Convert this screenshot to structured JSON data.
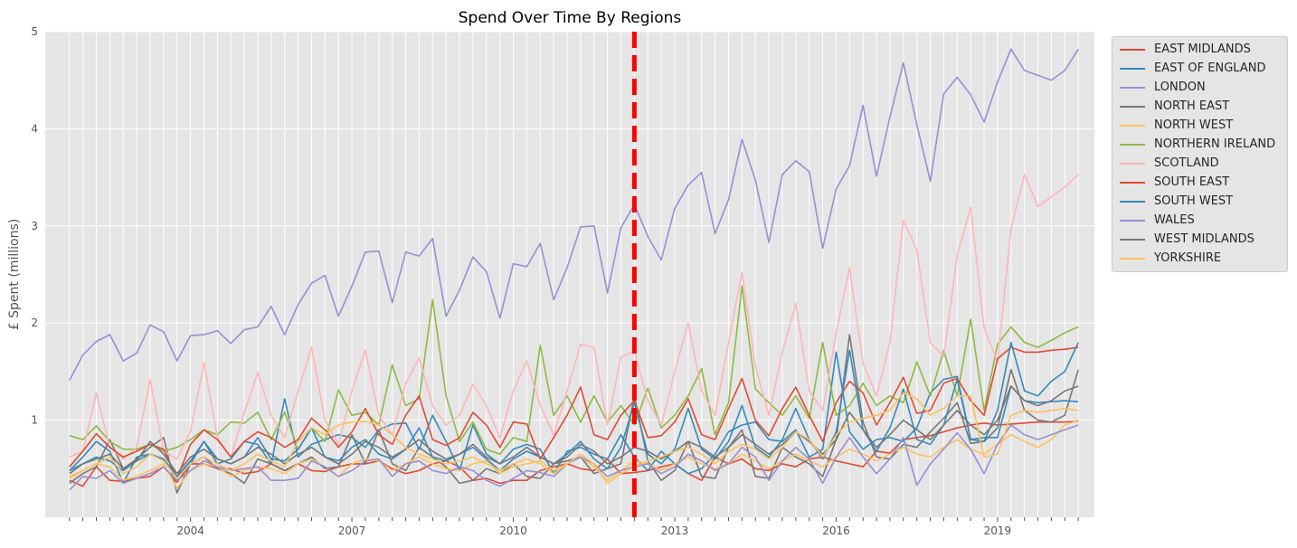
{
  "chart_data": {
    "type": "line",
    "title": "Spend Over Time By Regions",
    "xlabel": "",
    "ylabel": "£ Spent (millions)",
    "ylim": [
      0,
      5
    ],
    "xlim": [
      2001.3,
      2020.8
    ],
    "yticks": [
      1,
      2,
      3,
      4,
      5
    ],
    "xticks": [
      {
        "value": 2004,
        "label": "2004"
      },
      {
        "value": 2007,
        "label": "2007"
      },
      {
        "value": 2010,
        "label": "2010"
      },
      {
        "value": 2013,
        "label": "2013"
      },
      {
        "value": 2016,
        "label": "2016"
      },
      {
        "value": 2019,
        "label": "2019"
      }
    ],
    "grid": true,
    "legend_position": "outside-top-right",
    "x_start": 2001.75,
    "x_step": 0.25,
    "vline": {
      "x": 2012.25,
      "color": "#ff0000",
      "style": "dashed"
    },
    "series": [
      {
        "name": "EAST MIDLANDS",
        "color": "#E24A33",
        "values": [
          0.38,
          0.32,
          0.52,
          0.38,
          0.37,
          0.4,
          0.42,
          0.52,
          0.36,
          0.55,
          0.55,
          0.5,
          0.5,
          0.45,
          0.47,
          0.55,
          0.48,
          0.55,
          0.48,
          0.47,
          0.52,
          0.55,
          0.55,
          0.58,
          0.5,
          0.45,
          0.48,
          0.55,
          0.58,
          0.52,
          0.38,
          0.4,
          0.35,
          0.38,
          0.38,
          0.48,
          0.52,
          0.55,
          0.5,
          0.48,
          0.6,
          0.45,
          0.46,
          0.48,
          0.52,
          0.55,
          0.45,
          0.38,
          0.62,
          0.55,
          0.6,
          0.5,
          0.48,
          0.55,
          0.52,
          0.6,
          0.62,
          0.58,
          0.55,
          0.52,
          0.68,
          0.66,
          0.8,
          0.82,
          0.84,
          0.88,
          0.92,
          0.95,
          0.97,
          0.95,
          0.96,
          0.97,
          0.98,
          0.98,
          0.98,
          0.99
        ]
      },
      {
        "name": "EAST OF ENGLAND",
        "color": "#348ABD",
        "values": [
          0.48,
          0.62,
          0.78,
          0.68,
          0.35,
          0.62,
          0.65,
          0.6,
          0.42,
          0.55,
          0.78,
          0.55,
          0.6,
          0.78,
          0.75,
          0.55,
          1.22,
          0.62,
          0.75,
          0.8,
          0.85,
          0.82,
          0.72,
          0.9,
          0.96,
          0.97,
          0.7,
          1.05,
          0.78,
          0.48,
          0.95,
          0.65,
          0.55,
          0.7,
          0.75,
          0.7,
          0.45,
          0.68,
          0.72,
          0.65,
          0.6,
          0.85,
          0.62,
          0.48,
          0.68,
          0.55,
          0.45,
          0.5,
          0.65,
          0.88,
          0.95,
          0.98,
          0.8,
          0.78,
          0.9,
          0.62,
          0.7,
          1.7,
          0.88,
          0.7,
          0.8,
          0.82,
          0.78,
          0.92,
          1.28,
          1.42,
          1.45,
          0.8,
          0.82,
          0.82,
          1.35,
          1.2,
          1.18,
          1.19,
          1.2,
          1.19
        ]
      },
      {
        "name": "LONDON",
        "color": "#988ED5",
        "values": [
          1.41,
          1.67,
          1.81,
          1.88,
          1.61,
          1.69,
          1.98,
          1.91,
          1.61,
          1.87,
          1.88,
          1.92,
          1.79,
          1.93,
          1.96,
          2.17,
          1.88,
          2.19,
          2.41,
          2.49,
          2.07,
          2.38,
          2.73,
          2.74,
          2.21,
          2.73,
          2.69,
          2.87,
          2.07,
          2.34,
          2.68,
          2.53,
          2.05,
          2.61,
          2.58,
          2.82,
          2.24,
          2.57,
          2.99,
          3.0,
          2.31,
          2.98,
          3.22,
          2.89,
          2.65,
          3.18,
          3.42,
          3.55,
          2.92,
          3.27,
          3.89,
          3.47,
          2.83,
          3.53,
          3.67,
          3.56,
          2.77,
          3.38,
          3.62,
          4.24,
          3.51,
          4.12,
          4.68,
          4.04,
          3.46,
          4.36,
          4.53,
          4.35,
          4.07,
          4.48,
          4.82,
          4.6,
          4.55,
          4.5,
          4.6,
          4.82
        ]
      },
      {
        "name": "NORTH EAST",
        "color": "#777777",
        "values": [
          0.35,
          0.45,
          0.52,
          0.8,
          0.5,
          0.6,
          0.72,
          0.82,
          0.25,
          0.55,
          0.62,
          0.5,
          0.45,
          0.35,
          0.6,
          0.55,
          0.48,
          0.55,
          0.62,
          0.5,
          0.52,
          0.85,
          0.55,
          0.9,
          0.55,
          0.48,
          0.72,
          0.62,
          0.52,
          0.35,
          0.38,
          0.5,
          0.45,
          0.55,
          0.42,
          0.4,
          0.55,
          0.58,
          0.62,
          0.45,
          0.5,
          0.55,
          1.25,
          0.58,
          0.38,
          0.48,
          0.78,
          0.42,
          0.4,
          0.72,
          0.9,
          0.42,
          0.4,
          0.72,
          0.62,
          0.55,
          0.42,
          0.8,
          1.88,
          0.98,
          0.62,
          0.6,
          0.75,
          0.72,
          0.88,
          1.02,
          1.18,
          0.76,
          0.78,
          0.92,
          1.52,
          1.1,
          1.0,
          0.98,
          1.05,
          1.52
        ]
      },
      {
        "name": "NORTH WEST",
        "color": "#FBC15E",
        "values": [
          0.42,
          0.48,
          0.55,
          0.52,
          0.38,
          0.42,
          0.48,
          0.55,
          0.3,
          0.48,
          0.55,
          0.52,
          0.42,
          0.48,
          0.52,
          0.5,
          0.45,
          0.55,
          0.6,
          0.52,
          0.42,
          0.55,
          0.6,
          0.58,
          0.48,
          0.55,
          0.62,
          0.55,
          0.5,
          0.48,
          0.55,
          0.58,
          0.45,
          0.52,
          0.55,
          0.58,
          0.48,
          0.55,
          0.62,
          0.52,
          0.38,
          0.48,
          0.58,
          0.55,
          0.48,
          0.55,
          0.62,
          0.55,
          0.5,
          0.55,
          0.65,
          0.58,
          0.5,
          0.58,
          0.65,
          0.58,
          0.52,
          0.62,
          0.7,
          0.65,
          0.58,
          0.65,
          0.72,
          0.65,
          0.62,
          0.72,
          0.8,
          0.7,
          0.65,
          0.75,
          0.85,
          0.78,
          0.72,
          0.8,
          0.95,
          1.0
        ]
      },
      {
        "name": "NORTHERN IRELAND",
        "color": "#8EBA42",
        "values": [
          0.84,
          0.8,
          0.94,
          0.78,
          0.7,
          0.7,
          0.75,
          0.68,
          0.72,
          0.8,
          0.9,
          0.85,
          0.98,
          0.97,
          1.08,
          0.8,
          1.08,
          0.7,
          0.92,
          0.78,
          1.31,
          1.05,
          1.08,
          0.95,
          1.57,
          1.15,
          1.22,
          2.24,
          1.25,
          0.78,
          0.98,
          0.7,
          0.65,
          0.82,
          0.78,
          1.77,
          1.05,
          1.25,
          0.98,
          1.25,
          0.98,
          1.15,
          0.95,
          1.33,
          0.92,
          1.05,
          1.25,
          1.53,
          0.85,
          1.18,
          2.38,
          1.32,
          1.18,
          1.05,
          1.25,
          1.02,
          1.8,
          1.05,
          1.15,
          1.38,
          1.15,
          1.25,
          1.18,
          1.6,
          1.25,
          1.72,
          1.25,
          2.04,
          1.1,
          1.78,
          1.96,
          1.8,
          1.75,
          1.82,
          1.9,
          1.96
        ]
      },
      {
        "name": "SCOTLAND",
        "color": "#FFB5B8",
        "values": [
          0.62,
          0.68,
          1.28,
          0.72,
          0.6,
          0.72,
          1.42,
          0.68,
          0.6,
          0.88,
          1.59,
          0.82,
          0.62,
          1.08,
          1.49,
          1.05,
          0.82,
          1.3,
          1.75,
          1.0,
          0.75,
          1.3,
          1.72,
          1.05,
          0.85,
          1.38,
          1.64,
          1.15,
          0.95,
          1.05,
          1.37,
          1.15,
          0.82,
          1.3,
          1.61,
          1.15,
          0.85,
          1.3,
          1.78,
          1.75,
          0.95,
          1.65,
          1.71,
          1.2,
          0.95,
          1.5,
          2.0,
          1.3,
          1.05,
          1.8,
          2.52,
          1.55,
          1.05,
          1.7,
          2.2,
          1.3,
          1.1,
          1.9,
          2.57,
          1.58,
          1.25,
          1.8,
          3.06,
          2.75,
          1.8,
          1.65,
          2.7,
          3.19,
          1.95,
          1.6,
          2.97,
          3.53,
          3.2,
          3.3,
          3.4,
          3.53
        ]
      },
      {
        "name": "SOUTH EAST",
        "color": "#E24A33",
        "values": [
          0.52,
          0.68,
          0.86,
          0.72,
          0.62,
          0.68,
          0.75,
          0.7,
          0.4,
          0.75,
          0.9,
          0.8,
          0.62,
          0.78,
          0.88,
          0.82,
          0.72,
          0.8,
          1.02,
          0.9,
          0.72,
          0.88,
          1.12,
          0.85,
          0.75,
          1.05,
          1.25,
          0.8,
          0.74,
          0.82,
          1.08,
          0.95,
          0.72,
          0.98,
          0.96,
          0.6,
          0.82,
          1.05,
          1.34,
          0.85,
          0.8,
          1.05,
          1.2,
          0.82,
          0.84,
          0.98,
          1.22,
          0.85,
          0.8,
          1.12,
          1.43,
          1.0,
          0.84,
          1.12,
          1.34,
          1.05,
          0.78,
          1.18,
          1.4,
          1.28,
          0.95,
          1.18,
          1.44,
          1.07,
          1.1,
          1.38,
          1.43,
          1.2,
          1.05,
          1.63,
          1.75,
          1.7,
          1.7,
          1.72,
          1.73,
          1.75
        ]
      },
      {
        "name": "SOUTH WEST",
        "color": "#348ABD",
        "values": [
          0.48,
          0.55,
          0.62,
          0.58,
          0.48,
          0.58,
          0.65,
          0.6,
          0.42,
          0.58,
          0.78,
          0.6,
          0.55,
          0.62,
          0.82,
          0.6,
          0.58,
          0.7,
          0.92,
          0.62,
          0.58,
          0.72,
          0.8,
          0.65,
          0.6,
          0.7,
          0.92,
          0.62,
          0.58,
          0.65,
          0.72,
          0.6,
          0.48,
          0.6,
          0.68,
          0.62,
          0.55,
          0.65,
          0.78,
          0.6,
          0.5,
          0.72,
          1.18,
          0.65,
          0.55,
          0.7,
          1.12,
          0.7,
          0.6,
          0.78,
          1.15,
          0.72,
          0.62,
          0.8,
          1.12,
          0.8,
          0.6,
          0.88,
          1.72,
          0.9,
          0.68,
          0.92,
          1.32,
          0.8,
          0.75,
          0.95,
          1.42,
          0.8,
          0.78,
          1.1,
          1.8,
          1.3,
          1.25,
          1.4,
          1.5,
          1.8
        ]
      },
      {
        "name": "WALES",
        "color": "#988ED5",
        "values": [
          0.28,
          0.42,
          0.4,
          0.48,
          0.35,
          0.4,
          0.45,
          0.52,
          0.38,
          0.48,
          0.58,
          0.52,
          0.48,
          0.5,
          0.52,
          0.38,
          0.38,
          0.4,
          0.58,
          0.52,
          0.42,
          0.48,
          0.58,
          0.6,
          0.42,
          0.55,
          0.58,
          0.48,
          0.45,
          0.52,
          0.48,
          0.38,
          0.32,
          0.4,
          0.48,
          0.46,
          0.42,
          0.55,
          0.62,
          0.55,
          0.42,
          0.48,
          0.52,
          0.55,
          0.45,
          0.52,
          0.65,
          0.58,
          0.48,
          0.55,
          0.72,
          0.62,
          0.38,
          0.58,
          0.72,
          0.6,
          0.35,
          0.62,
          0.82,
          0.62,
          0.45,
          0.6,
          0.82,
          0.33,
          0.55,
          0.7,
          0.87,
          0.7,
          0.45,
          0.75,
          0.95,
          0.85,
          0.8,
          0.85,
          0.9,
          0.95
        ]
      },
      {
        "name": "WEST MIDLANDS",
        "color": "#777777",
        "values": [
          0.45,
          0.55,
          0.6,
          0.65,
          0.5,
          0.58,
          0.78,
          0.65,
          0.45,
          0.62,
          0.7,
          0.6,
          0.55,
          0.62,
          0.72,
          0.65,
          0.55,
          0.65,
          0.72,
          0.62,
          0.55,
          0.65,
          0.78,
          0.72,
          0.62,
          0.7,
          0.8,
          0.68,
          0.6,
          0.65,
          0.75,
          0.62,
          0.55,
          0.62,
          0.72,
          0.62,
          0.55,
          0.62,
          0.75,
          0.68,
          0.55,
          0.62,
          0.72,
          0.68,
          0.6,
          0.68,
          0.78,
          0.72,
          0.62,
          0.72,
          0.85,
          0.75,
          0.65,
          0.75,
          0.88,
          0.78,
          0.65,
          0.8,
          1.08,
          0.9,
          0.72,
          0.85,
          1.0,
          0.9,
          0.8,
          0.95,
          1.1,
          0.95,
          0.85,
          1.0,
          1.35,
          1.2,
          1.15,
          1.2,
          1.3,
          1.35
        ]
      },
      {
        "name": "YORKSHIRE",
        "color": "#FBC15E",
        "values": [
          0.4,
          0.48,
          0.55,
          0.62,
          0.45,
          0.52,
          0.65,
          0.58,
          0.4,
          0.55,
          0.62,
          0.55,
          0.48,
          0.55,
          0.65,
          0.58,
          0.52,
          0.78,
          0.92,
          0.85,
          0.95,
          0.98,
          0.99,
          0.95,
          0.85,
          0.72,
          0.65,
          0.6,
          0.55,
          0.58,
          0.62,
          0.55,
          0.48,
          0.55,
          0.6,
          0.55,
          0.45,
          0.55,
          0.65,
          0.55,
          0.35,
          0.45,
          0.52,
          0.58,
          0.62,
          0.68,
          0.72,
          0.65,
          0.55,
          0.68,
          0.75,
          0.7,
          0.6,
          0.72,
          0.88,
          0.8,
          0.62,
          0.85,
          0.98,
          1.02,
          1.05,
          1.1,
          1.28,
          1.22,
          1.05,
          1.12,
          1.25,
          1.25,
          0.62,
          0.65,
          1.05,
          1.1,
          1.08,
          1.1,
          1.12,
          1.1
        ]
      }
    ]
  }
}
